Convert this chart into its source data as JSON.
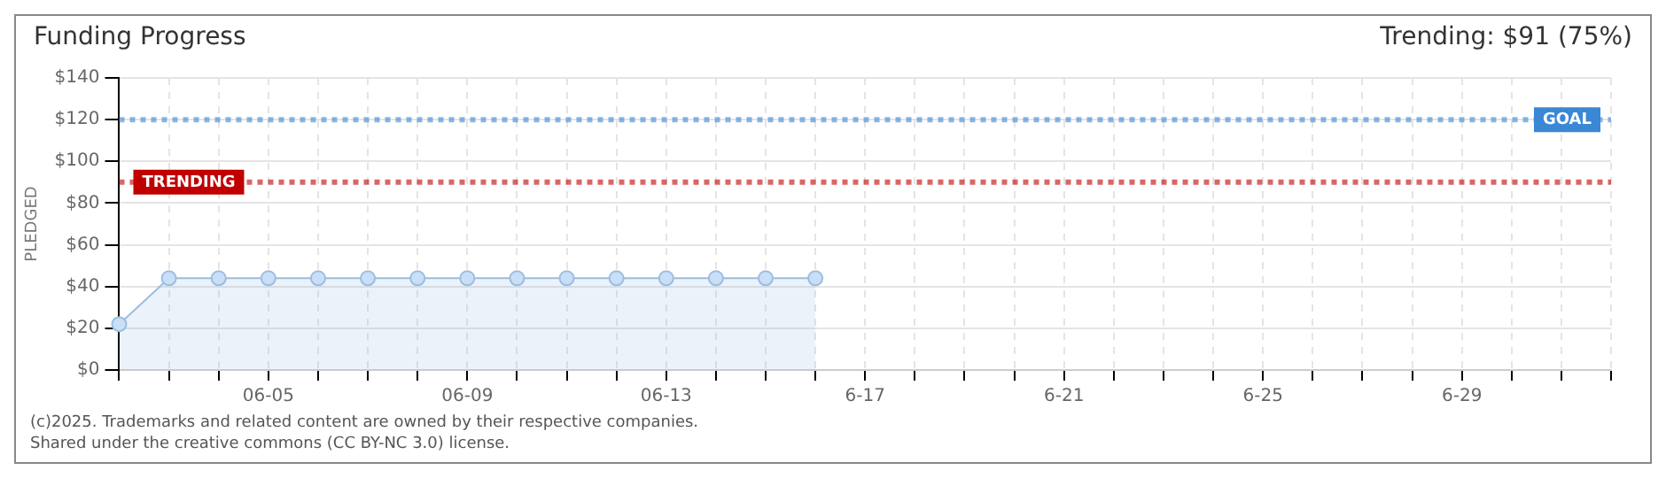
{
  "chart_data": {
    "type": "area",
    "title": "Funding Progress",
    "ylabel": "PLEDGED",
    "annotations": [
      "Trending: $91 (75%)",
      "(c)2025. Trademarks and related content are owned by their respective companies.",
      "Shared under the creative commons (CC BY-NC 3.0) license."
    ],
    "categories": [
      null,
      null,
      null,
      "06-05",
      null,
      null,
      null,
      "06-09",
      null,
      null,
      null,
      "06-13",
      null,
      null,
      null,
      "6-17",
      null,
      null,
      null,
      "6-21",
      null,
      null,
      null,
      "6-25",
      null,
      null,
      null,
      "6-29",
      null,
      null,
      null
    ],
    "series": [
      {
        "color": "#9bbde0",
        "values": [
          22,
          44,
          44,
          44,
          44,
          44,
          44,
          44,
          44,
          44,
          44,
          44,
          44,
          44,
          44,
          null,
          null,
          null,
          null,
          null,
          null,
          null,
          null,
          null,
          null,
          null,
          null,
          null,
          null,
          null,
          null
        ]
      }
    ],
    "ylim": [
      0,
      140
    ],
    "yticks": [
      {
        "value": 0,
        "label": "$0"
      },
      {
        "value": 20,
        "label": "$20"
      },
      {
        "value": 40,
        "label": "$40"
      },
      {
        "value": 60,
        "label": "$60"
      },
      {
        "value": 80,
        "label": "$80"
      },
      {
        "value": 100,
        "label": "$100"
      },
      {
        "value": 120,
        "label": "$120"
      },
      {
        "value": 140,
        "label": "$140"
      }
    ],
    "ref_lines": [
      {
        "axis": "y",
        "value": 120,
        "label": "GOAL",
        "color": "#3a87d5",
        "line_style": "dotted"
      },
      {
        "axis": "y",
        "value": 90,
        "label": "TRENDING",
        "color": "#c00000",
        "line_style": "dotted"
      }
    ],
    "grid": true,
    "marker": "circle",
    "line_style": "solid"
  }
}
